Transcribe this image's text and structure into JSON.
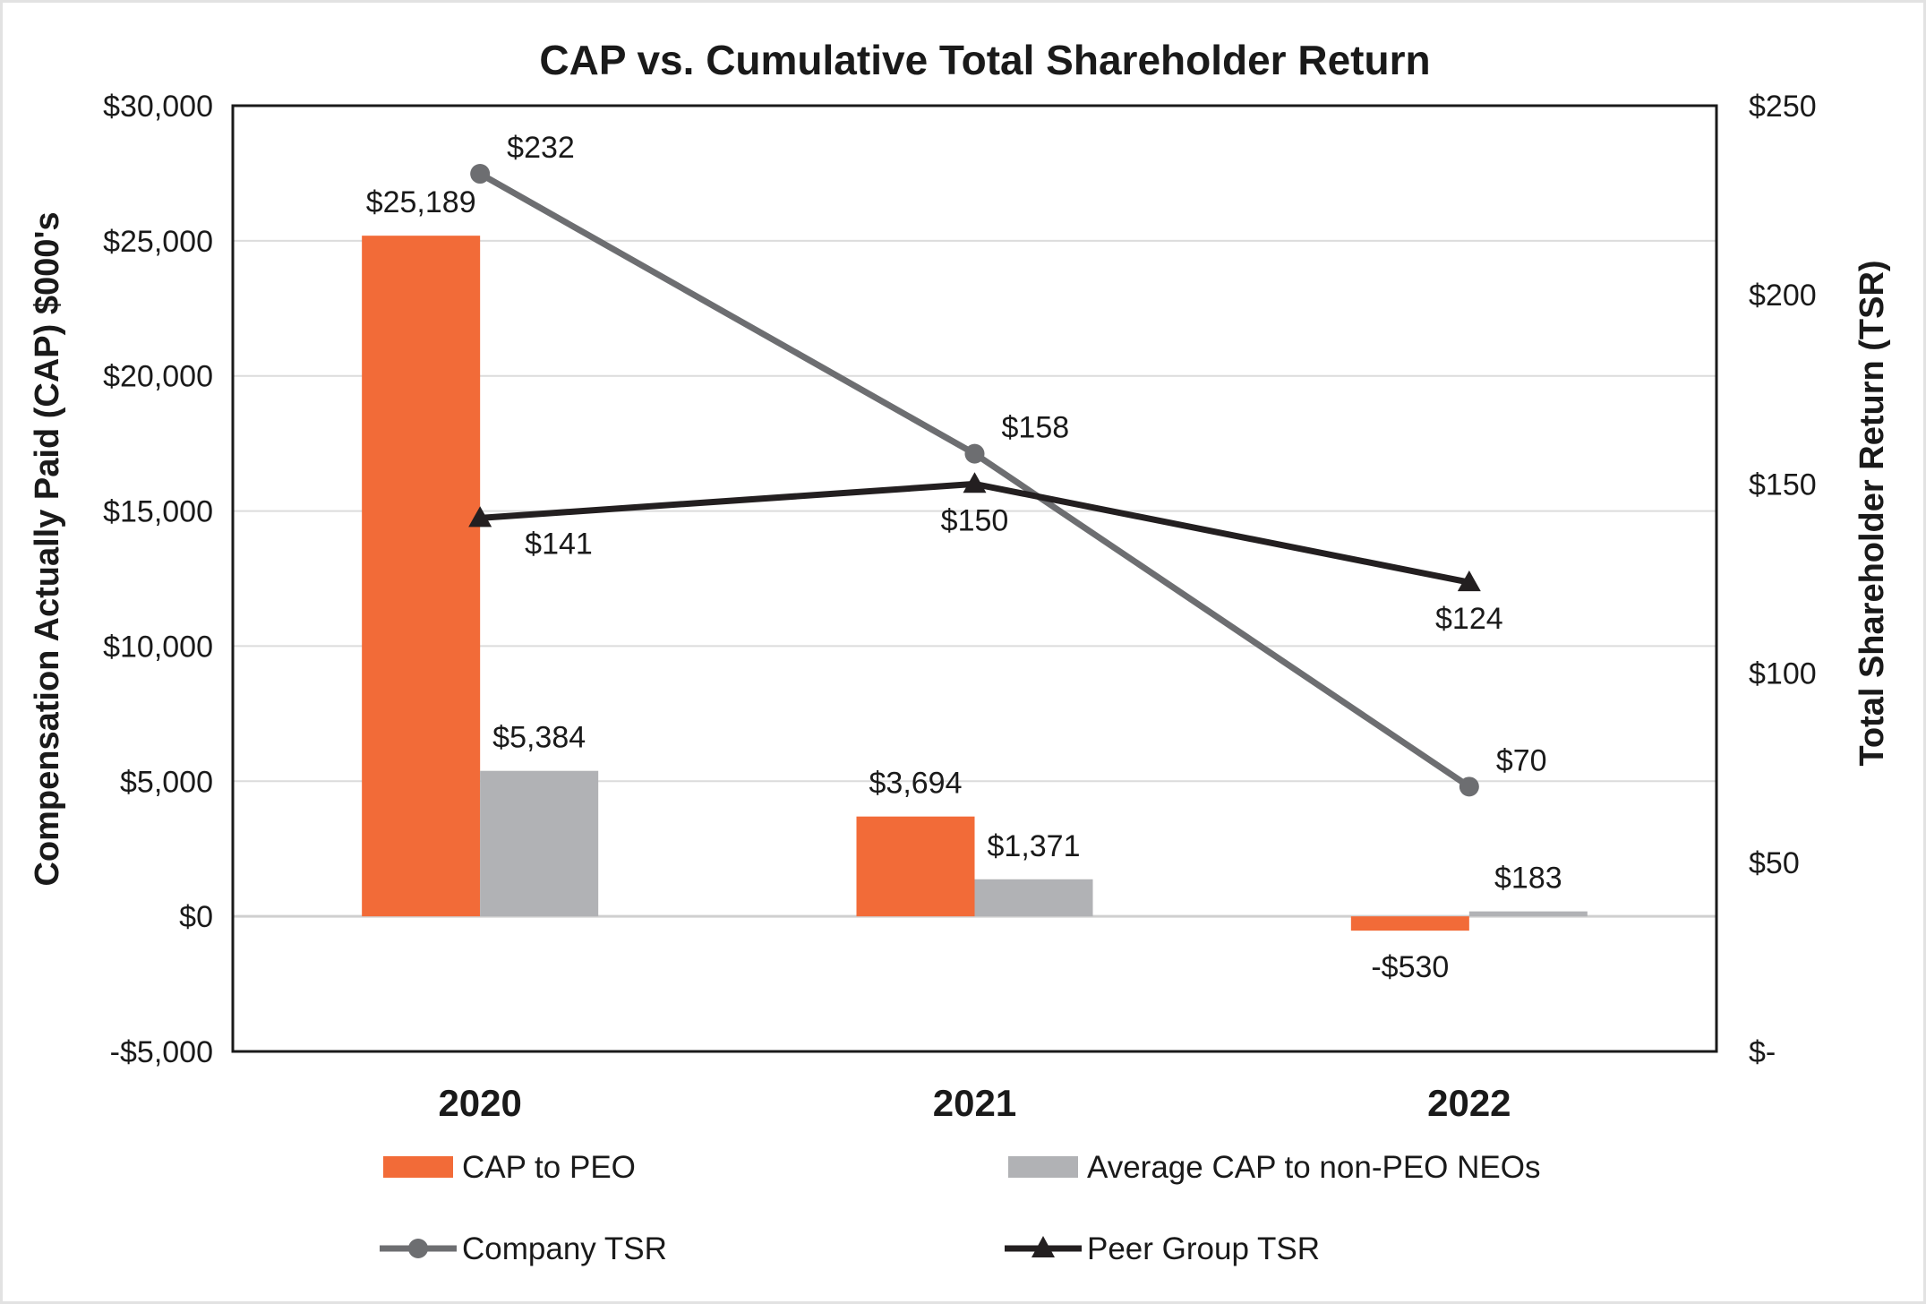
{
  "chart_data": {
    "type": "bar",
    "title": "CAP vs. Cumulative Total Shareholder Return",
    "categories": [
      "2020",
      "2021",
      "2022"
    ],
    "ylabel": "Compensation Actually Paid (CAP) $000's",
    "y2label": "Total Shareholder Return (TSR)",
    "ylim": [
      -5000,
      30000
    ],
    "y2lim": [
      0,
      250
    ],
    "yticks": [
      -5000,
      0,
      5000,
      10000,
      15000,
      20000,
      25000,
      30000
    ],
    "ytick_labels": [
      "-$5,000",
      "$0",
      "$5,000",
      "$10,000",
      "$15,000",
      "$20,000",
      "$25,000",
      "$30,000"
    ],
    "y2ticks": [
      0,
      50,
      100,
      150,
      200,
      250
    ],
    "y2tick_labels": [
      "$-",
      "$50",
      "$100",
      "$150",
      "$200",
      "$250"
    ],
    "grid": true,
    "legend_position": "bottom",
    "series": [
      {
        "name": "CAP to PEO",
        "kind": "bar",
        "axis": "left",
        "color": "#f26b38",
        "values": [
          25189,
          3694,
          -530
        ],
        "labels": [
          "$25,189",
          "$3,694",
          "-$530"
        ]
      },
      {
        "name": "Average CAP to non-PEO NEOs",
        "kind": "bar",
        "axis": "left",
        "color": "#b1b2b5",
        "values": [
          5384,
          1371,
          183
        ],
        "labels": [
          "$5,384",
          "$1,371",
          "$183"
        ]
      },
      {
        "name": "Company TSR",
        "kind": "line",
        "axis": "right",
        "marker": "circle",
        "color": "#6d6e71",
        "values": [
          232,
          158,
          70
        ],
        "labels": [
          "$232",
          "$158",
          "$70"
        ]
      },
      {
        "name": "Peer Group TSR",
        "kind": "line",
        "axis": "right",
        "marker": "triangle",
        "color": "#231f20",
        "values": [
          141,
          150,
          124
        ],
        "labels": [
          "$141",
          "$150",
          "$124"
        ]
      }
    ]
  }
}
